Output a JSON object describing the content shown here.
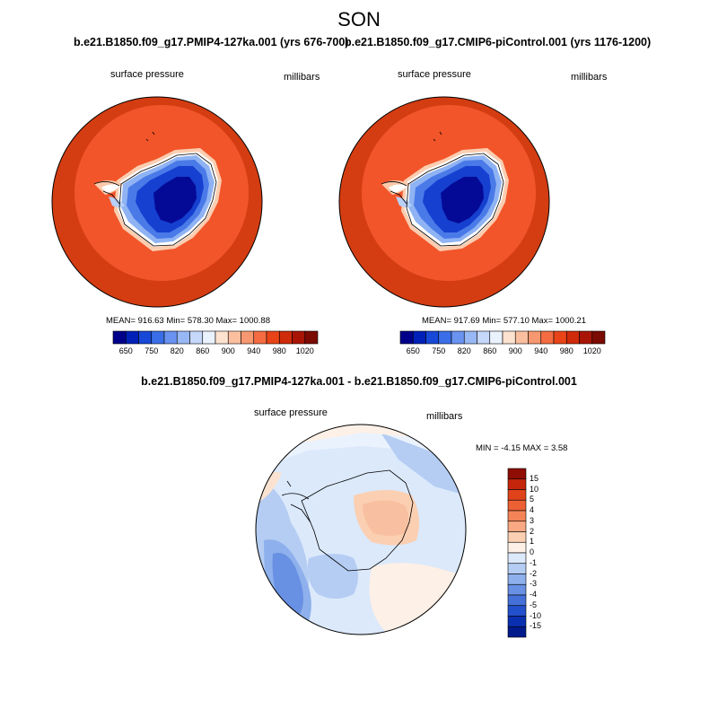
{
  "season": "SON",
  "panels": [
    {
      "case_title": "b.e21.B1850.f09_g17.PMIP4-127ka.001 (yrs 676-700)",
      "variable": "surface pressure",
      "units": "millibars",
      "stats": "MEAN= 916.63  Min= 578.30  Max= 1000.88"
    },
    {
      "case_title": "b.e21.B1850.f09_g17.CMIP6-piControl.001 (yrs 1176-1200)",
      "variable": "surface pressure",
      "units": "millibars",
      "stats": "MEAN= 917.69  Min= 577.10  Max= 1000.21"
    }
  ],
  "colorbar_absolute": {
    "labels": [
      "650",
      "750",
      "820",
      "860",
      "900",
      "940",
      "980",
      "1020"
    ],
    "colors": [
      "#00008a",
      "#0020b8",
      "#1848d8",
      "#3a6ee8",
      "#6a92f0",
      "#98b8f5",
      "#c6d8fa",
      "#eaf2fe",
      "#fde2d0",
      "#fbbfa0",
      "#f89870",
      "#f56c42",
      "#e94418",
      "#cf2a0a",
      "#a81506",
      "#7a0a02"
    ]
  },
  "difference": {
    "title": "b.e21.B1850.f09_g17.PMIP4-127ka.001 - b.e21.B1850.f09_g17.CMIP6-piControl.001",
    "variable": "surface pressure",
    "units": "millibars",
    "stats": "MIN =  -4.15 MAX =   3.58"
  },
  "colorbar_difference": {
    "labels": [
      "15",
      "10",
      "5",
      "4",
      "3",
      "2",
      "1",
      "0",
      "-1",
      "-2",
      "-3",
      "-4",
      "-5",
      "-10",
      "-15"
    ],
    "colors": [
      "#8f0d03",
      "#c5260b",
      "#e0431a",
      "#ec6034",
      "#f48458",
      "#f8a882",
      "#fbcfb2",
      "#fdf0e6",
      "#dbe9fb",
      "#b5cdf3",
      "#8eb0ec",
      "#6890e3",
      "#4470d8",
      "#2350cc",
      "#0a30b2",
      "#001a8c"
    ]
  },
  "legend_position": "right of difference map",
  "map_projection": "south polar stereographic"
}
